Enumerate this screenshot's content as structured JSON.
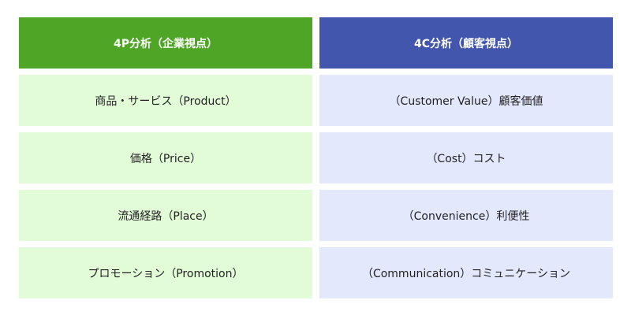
{
  "colors": {
    "p_header": "#4ea526",
    "c_header": "#4356ae",
    "p_row": "#e2fcd8",
    "c_row": "#e4e8fd"
  },
  "p": {
    "header": "4P分析（企業視点）",
    "rows": [
      "商品・サービス（Product）",
      "価格（Price）",
      "流通経路（Place）",
      "プロモーション（Promotion）"
    ]
  },
  "c": {
    "header": "4C分析（顧客視点）",
    "rows": [
      "（Customer Value）顧客価値",
      "（Cost）コスト",
      "（Convenience）利便性",
      "（Communication）コミュニケーション"
    ]
  }
}
